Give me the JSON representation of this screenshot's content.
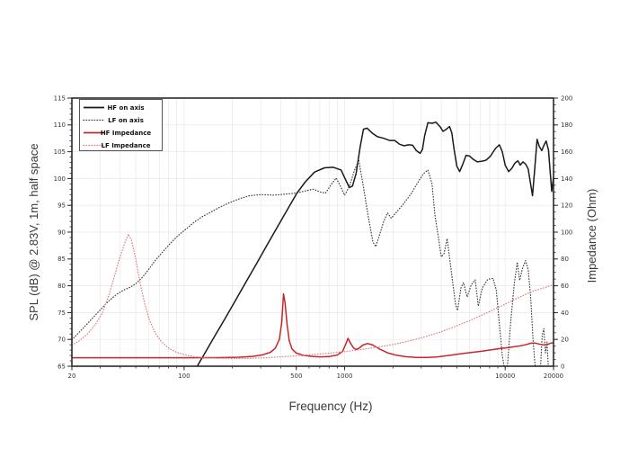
{
  "page": {
    "background": "#ffffff"
  },
  "chart_data": {
    "type": "line",
    "title": "",
    "xlabel": "Frequency (Hz)",
    "ylabel_left": "SPL (dB) @ 2.83V, 1m, half space",
    "ylabel_right": "Impedance (Ohm)",
    "x_scale": "log",
    "x_range": [
      20,
      20000
    ],
    "y_left_range": [
      65,
      115
    ],
    "y_right_range": [
      0,
      200
    ],
    "x_tick_labels": [
      "20",
      "100",
      "500",
      "1000",
      "10000",
      "20000"
    ],
    "x_tick_values": [
      20,
      100,
      500,
      1000,
      10000,
      20000
    ],
    "y_left_ticks": [
      65,
      70,
      75,
      80,
      85,
      90,
      95,
      100,
      105,
      110,
      115
    ],
    "y_right_ticks": [
      0,
      20,
      40,
      60,
      80,
      100,
      120,
      140,
      160,
      180,
      200
    ],
    "grid": true,
    "legend_position": "top-left",
    "colors": {
      "frame": "#2a2a2a",
      "grid": "#e7e7e7",
      "black_trace": "#1a1a1a",
      "gray_trace": "#3c3c3c",
      "red_trace": "#c4272c",
      "light_red_trace": "#d97b7e"
    },
    "series": [
      {
        "name": "HF on axis",
        "axis": "spl",
        "style": "solid",
        "color": "#1a1a1a",
        "points": [
          [
            118,
            64.5
          ],
          [
            135,
            67.5
          ],
          [
            155,
            70.6
          ],
          [
            180,
            73.9
          ],
          [
            210,
            77.4
          ],
          [
            245,
            80.9
          ],
          [
            285,
            84.3
          ],
          [
            330,
            87.7
          ],
          [
            380,
            90.9
          ],
          [
            440,
            94.2
          ],
          [
            505,
            97.3
          ],
          [
            570,
            99.4
          ],
          [
            650,
            101.2
          ],
          [
            750,
            102.0
          ],
          [
            850,
            102.1
          ],
          [
            950,
            101.6
          ],
          [
            1020,
            99.6
          ],
          [
            1070,
            98.3
          ],
          [
            1120,
            98.6
          ],
          [
            1180,
            101.0
          ],
          [
            1250,
            106.0
          ],
          [
            1310,
            109.2
          ],
          [
            1380,
            109.4
          ],
          [
            1480,
            108.5
          ],
          [
            1600,
            107.8
          ],
          [
            1750,
            107.5
          ],
          [
            1900,
            107.1
          ],
          [
            2050,
            107.1
          ],
          [
            2200,
            106.4
          ],
          [
            2350,
            106.1
          ],
          [
            2500,
            106.3
          ],
          [
            2650,
            106.2
          ],
          [
            2800,
            105.2
          ],
          [
            2950,
            104.7
          ],
          [
            3050,
            105.4
          ],
          [
            3150,
            108.0
          ],
          [
            3300,
            110.4
          ],
          [
            3500,
            110.3
          ],
          [
            3700,
            110.5
          ],
          [
            3950,
            109.6
          ],
          [
            4100,
            108.8
          ],
          [
            4300,
            109.2
          ],
          [
            4500,
            109.7
          ],
          [
            4650,
            108.5
          ],
          [
            4800,
            105.5
          ],
          [
            5000,
            102.3
          ],
          [
            5200,
            101.3
          ],
          [
            5450,
            102.7
          ],
          [
            5700,
            104.3
          ],
          [
            6000,
            104.2
          ],
          [
            6300,
            103.6
          ],
          [
            6700,
            103.1
          ],
          [
            7100,
            103.2
          ],
          [
            7600,
            103.4
          ],
          [
            8100,
            104.2
          ],
          [
            8700,
            105.6
          ],
          [
            9200,
            106.3
          ],
          [
            9600,
            105.0
          ],
          [
            10000,
            102.5
          ],
          [
            10500,
            101.3
          ],
          [
            11000,
            101.9
          ],
          [
            11500,
            102.9
          ],
          [
            12000,
            103.3
          ],
          [
            12400,
            102.5
          ],
          [
            12900,
            103.1
          ],
          [
            13400,
            102.7
          ],
          [
            13900,
            101.8
          ],
          [
            14400,
            99.0
          ],
          [
            14800,
            96.8
          ],
          [
            15300,
            102.0
          ],
          [
            15800,
            107.3
          ],
          [
            16300,
            106.0
          ],
          [
            16900,
            105.2
          ],
          [
            17500,
            106.3
          ],
          [
            18000,
            107.0
          ],
          [
            18600,
            105.3
          ],
          [
            19100,
            101.0
          ],
          [
            19500,
            97.6
          ],
          [
            20000,
            100.3
          ]
        ]
      },
      {
        "name": "LF on axis",
        "axis": "spl",
        "style": "dotted",
        "color": "#3c3c3c",
        "points": [
          [
            20,
            69.9
          ],
          [
            23,
            71.8
          ],
          [
            26,
            73.5
          ],
          [
            30,
            75.5
          ],
          [
            34,
            77.2
          ],
          [
            38,
            78.4
          ],
          [
            42,
            79.2
          ],
          [
            46,
            79.7
          ],
          [
            50,
            80.4
          ],
          [
            55,
            81.6
          ],
          [
            60,
            83.0
          ],
          [
            66,
            84.7
          ],
          [
            73,
            86.2
          ],
          [
            82,
            87.9
          ],
          [
            92,
            89.4
          ],
          [
            103,
            90.6
          ],
          [
            116,
            91.9
          ],
          [
            130,
            92.9
          ],
          [
            148,
            93.8
          ],
          [
            168,
            94.7
          ],
          [
            192,
            95.5
          ],
          [
            220,
            96.2
          ],
          [
            255,
            96.8
          ],
          [
            300,
            97.0
          ],
          [
            360,
            96.9
          ],
          [
            430,
            97.1
          ],
          [
            505,
            97.3
          ],
          [
            570,
            97.7
          ],
          [
            640,
            98.0
          ],
          [
            700,
            97.5
          ],
          [
            760,
            97.3
          ],
          [
            830,
            99.0
          ],
          [
            885,
            100.1
          ],
          [
            940,
            98.6
          ],
          [
            1000,
            96.9
          ],
          [
            1070,
            98.5
          ],
          [
            1150,
            101.5
          ],
          [
            1225,
            103.4
          ],
          [
            1300,
            99.0
          ],
          [
            1400,
            93.0
          ],
          [
            1500,
            88.2
          ],
          [
            1560,
            87.3
          ],
          [
            1650,
            89.5
          ],
          [
            1750,
            92.0
          ],
          [
            1850,
            93.6
          ],
          [
            1950,
            92.6
          ],
          [
            2100,
            93.7
          ],
          [
            2300,
            95.1
          ],
          [
            2600,
            97.2
          ],
          [
            2900,
            99.6
          ],
          [
            3100,
            100.9
          ],
          [
            3300,
            101.6
          ],
          [
            3500,
            99.0
          ],
          [
            3650,
            93.2
          ],
          [
            3800,
            89.9
          ],
          [
            4000,
            85.4
          ],
          [
            4150,
            85.9
          ],
          [
            4350,
            88.8
          ],
          [
            4600,
            83.0
          ],
          [
            4900,
            76.6
          ],
          [
            5050,
            75.4
          ],
          [
            5300,
            79.6
          ],
          [
            5500,
            80.6
          ],
          [
            5800,
            77.9
          ],
          [
            6150,
            80.2
          ],
          [
            6500,
            81.1
          ],
          [
            6800,
            76.2
          ],
          [
            7200,
            79.6
          ],
          [
            7800,
            81.2
          ],
          [
            8400,
            81.4
          ],
          [
            8800,
            79.2
          ],
          [
            9200,
            73.0
          ],
          [
            9600,
            67.0
          ],
          [
            9900,
            64.6
          ],
          [
            10300,
            64.6
          ],
          [
            10800,
            73.0
          ],
          [
            11400,
            80.5
          ],
          [
            11900,
            84.4
          ],
          [
            12300,
            81.0
          ],
          [
            12800,
            83.2
          ],
          [
            13400,
            84.7
          ],
          [
            13900,
            83.0
          ],
          [
            14400,
            78.0
          ],
          [
            14900,
            70.0
          ],
          [
            15400,
            64.6
          ],
          [
            16000,
            64.6
          ],
          [
            16600,
            64.6
          ],
          [
            17000,
            70.8
          ],
          [
            17400,
            72.0
          ],
          [
            17800,
            67.5
          ],
          [
            18200,
            69.5
          ],
          [
            18600,
            64.6
          ]
        ]
      },
      {
        "name": "HF Impedance",
        "axis": "ohm",
        "style": "solid",
        "color": "#c4272c",
        "points": [
          [
            20,
            6.3
          ],
          [
            100,
            6.3
          ],
          [
            160,
            6.4
          ],
          [
            220,
            6.7
          ],
          [
            270,
            7.4
          ],
          [
            310,
            8.6
          ],
          [
            345,
            10.4
          ],
          [
            370,
            13.5
          ],
          [
            392,
            20.0
          ],
          [
            406,
            33.0
          ],
          [
            416,
            54.0
          ],
          [
            426,
            47.0
          ],
          [
            438,
            31.0
          ],
          [
            452,
            19.0
          ],
          [
            470,
            12.8
          ],
          [
            500,
            9.8
          ],
          [
            550,
            8.2
          ],
          [
            620,
            7.4
          ],
          [
            700,
            7.0
          ],
          [
            800,
            7.2
          ],
          [
            900,
            8.4
          ],
          [
            970,
            11.0
          ],
          [
            1020,
            17.0
          ],
          [
            1050,
            20.8
          ],
          [
            1090,
            17.0
          ],
          [
            1140,
            13.5
          ],
          [
            1175,
            12.5
          ],
          [
            1230,
            13.5
          ],
          [
            1300,
            15.8
          ],
          [
            1390,
            17.0
          ],
          [
            1500,
            15.8
          ],
          [
            1650,
            12.8
          ],
          [
            1850,
            10.0
          ],
          [
            2100,
            8.2
          ],
          [
            2400,
            7.1
          ],
          [
            2800,
            6.6
          ],
          [
            3300,
            6.6
          ],
          [
            3800,
            7.0
          ],
          [
            4300,
            7.8
          ],
          [
            4800,
            8.6
          ],
          [
            5500,
            9.5
          ],
          [
            6300,
            10.4
          ],
          [
            7200,
            11.3
          ],
          [
            8200,
            12.2
          ],
          [
            9400,
            13.2
          ],
          [
            10500,
            13.9
          ],
          [
            12000,
            14.9
          ],
          [
            13300,
            15.9
          ],
          [
            14500,
            17.2
          ],
          [
            15300,
            17.3
          ],
          [
            16200,
            16.6
          ],
          [
            17200,
            16.0
          ],
          [
            18200,
            16.2
          ],
          [
            19200,
            17.2
          ],
          [
            20000,
            17.6
          ]
        ]
      },
      {
        "name": "LF Impedance",
        "axis": "ohm",
        "style": "dotted",
        "color": "#d97b7e",
        "points": [
          [
            20,
            15.8
          ],
          [
            22,
            18.5
          ],
          [
            25,
            24.0
          ],
          [
            28,
            31.0
          ],
          [
            31,
            40.0
          ],
          [
            34,
            53.0
          ],
          [
            37,
            68.0
          ],
          [
            40,
            82.0
          ],
          [
            43,
            93.0
          ],
          [
            45,
            98.5
          ],
          [
            47,
            94.0
          ],
          [
            50,
            80.0
          ],
          [
            53,
            63.0
          ],
          [
            57,
            46.0
          ],
          [
            61,
            34.0
          ],
          [
            66,
            25.0
          ],
          [
            72,
            18.5
          ],
          [
            80,
            13.5
          ],
          [
            90,
            10.3
          ],
          [
            102,
            8.4
          ],
          [
            118,
            7.0
          ],
          [
            140,
            6.2
          ],
          [
            170,
            5.9
          ],
          [
            210,
            5.8
          ],
          [
            265,
            5.9
          ],
          [
            330,
            6.4
          ],
          [
            420,
            7.1
          ],
          [
            530,
            7.9
          ],
          [
            670,
            8.9
          ],
          [
            840,
            10.0
          ],
          [
            1050,
            11.2
          ],
          [
            1300,
            12.6
          ],
          [
            1600,
            14.2
          ],
          [
            2000,
            16.2
          ],
          [
            2500,
            18.7
          ],
          [
            3100,
            21.6
          ],
          [
            3900,
            25.3
          ],
          [
            4900,
            29.7
          ],
          [
            6100,
            34.3
          ],
          [
            7600,
            39.5
          ],
          [
            9500,
            45.0
          ],
          [
            11800,
            50.6
          ],
          [
            14700,
            55.8
          ],
          [
            18000,
            59.0
          ],
          [
            20000,
            60.8
          ]
        ]
      }
    ]
  }
}
